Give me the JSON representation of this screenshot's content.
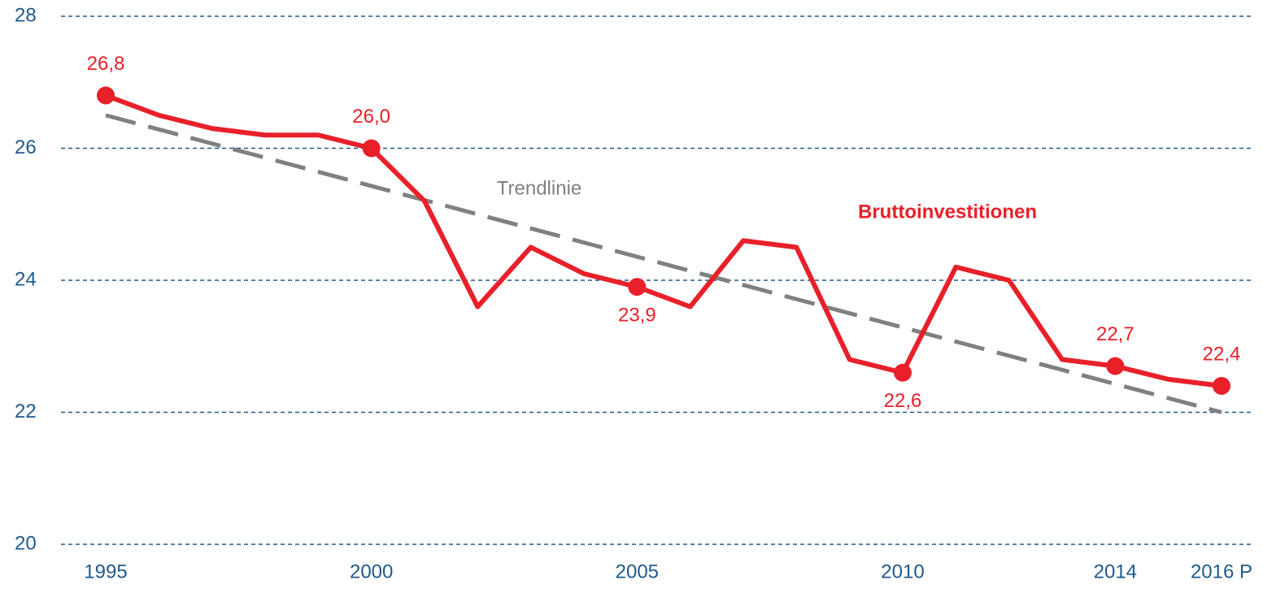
{
  "chart_data": {
    "type": "line",
    "categories": [
      "1995",
      null,
      null,
      null,
      null,
      "2000",
      null,
      null,
      null,
      null,
      "2005",
      null,
      null,
      null,
      null,
      "2010",
      null,
      null,
      null,
      "2014",
      null,
      "2016 P"
    ],
    "series": [
      {
        "name": "Bruttoinvestitionen",
        "color": "#e8202a",
        "values": [
          26.8,
          26.5,
          26.3,
          26.2,
          26.2,
          26.0,
          25.2,
          23.6,
          24.5,
          24.1,
          23.9,
          23.6,
          24.6,
          24.5,
          22.8,
          22.6,
          24.2,
          24.0,
          22.8,
          22.7,
          22.5,
          22.4
        ],
        "value_labels": [
          "26,8",
          null,
          null,
          null,
          null,
          "26,0",
          null,
          null,
          null,
          null,
          "23,9",
          null,
          null,
          null,
          null,
          "22,6",
          null,
          null,
          null,
          "22,7",
          null,
          "22,4"
        ]
      }
    ],
    "trend": {
      "name": "Trendlinie",
      "color": "#808080",
      "start": 26.5,
      "end": 22.0
    },
    "ylim": [
      20,
      28
    ],
    "yticks": [
      20,
      22,
      24,
      26,
      28
    ],
    "grid": true
  }
}
